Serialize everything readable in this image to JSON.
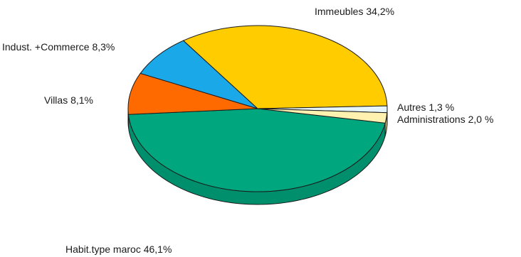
{
  "chart_data": {
    "type": "pie",
    "style": "3d",
    "title": "",
    "slices": [
      {
        "label": "Habit.type maroc 46,1%",
        "value": 46.1,
        "color": "#00a67e"
      },
      {
        "label": "Villas 8,1%",
        "value": 8.1,
        "color": "#ff6a00"
      },
      {
        "label": "Indust. +Commerce 8,3%",
        "value": 8.3,
        "color": "#1aa8e8"
      },
      {
        "label": "Immeubles 34,2%",
        "value": 34.2,
        "color": "#ffcc00"
      },
      {
        "label": "Autres 1,3 %",
        "value": 1.3,
        "color": "#e6f4fb"
      },
      {
        "label": "Administrations 2,0 %",
        "value": 2.0,
        "color": "#fff2b0"
      }
    ]
  }
}
